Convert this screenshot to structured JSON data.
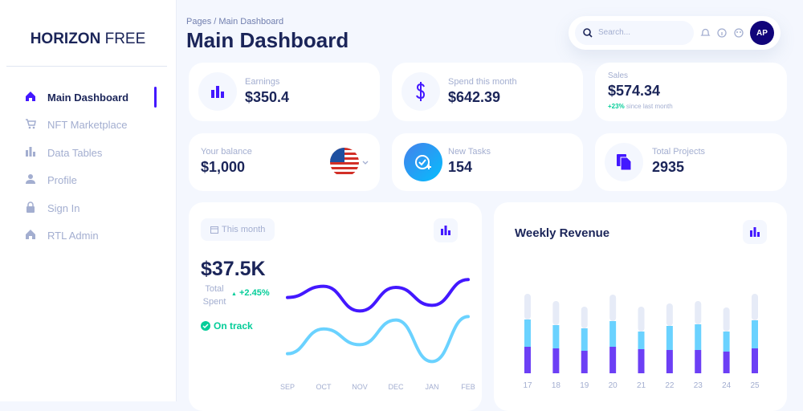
{
  "sidebar": {
    "brand_bold": "HORIZON",
    "brand_light": "FREE",
    "nav": [
      {
        "label": "Main Dashboard",
        "active": true
      },
      {
        "label": "NFT Marketplace"
      },
      {
        "label": "Data Tables"
      },
      {
        "label": "Profile"
      },
      {
        "label": "Sign In"
      },
      {
        "label": "RTL Admin"
      }
    ]
  },
  "header": {
    "breadcrumb_root": "Pages",
    "breadcrumb_sep": "/",
    "breadcrumb_current": "Main Dashboard",
    "title": "Main Dashboard",
    "search_placeholder": "Search...",
    "avatar": "AP"
  },
  "stats": [
    {
      "label": "Earnings",
      "value": "$350.4"
    },
    {
      "label": "Spend this month",
      "value": "$642.39"
    },
    {
      "label": "Sales",
      "value": "$574.34",
      "change": "+23%",
      "change_note": "since last month"
    },
    {
      "label": "Your balance",
      "value": "$1,000"
    },
    {
      "label": "New Tasks",
      "value": "154"
    },
    {
      "label": "Total Projects",
      "value": "2935"
    }
  ],
  "spending_card": {
    "period": "This month",
    "total": "$37.5K",
    "total_label": "Total Spent",
    "change": "+2.45%",
    "status": "On track",
    "chart": {
      "type": "line",
      "categories": [
        "SEP",
        "OCT",
        "NOV",
        "DEC",
        "JAN",
        "FEB"
      ],
      "series": [
        {
          "color": "#4318ff",
          "values": [
            71,
            81,
            59,
            80,
            64,
            87
          ]
        },
        {
          "color": "#6ad2ff",
          "values": [
            21,
            43,
            29,
            51,
            14,
            54
          ]
        }
      ],
      "ylim": [
        0,
        100
      ]
    }
  },
  "revenue_card": {
    "chart": {
      "type": "bar",
      "title": "Weekly Revenue",
      "stacked": true,
      "categories": [
        "17",
        "18",
        "19",
        "20",
        "21",
        "22",
        "23",
        "24",
        "25"
      ],
      "series": [
        {
          "color": "#6c3ff5",
          "values": [
            33,
            31,
            28,
            33,
            30,
            29,
            29,
            27,
            31
          ]
        },
        {
          "color": "#6ad2ff",
          "values": [
            34,
            29,
            28,
            32,
            22,
            30,
            32,
            25,
            35
          ]
        },
        {
          "color": "#e6ebf7",
          "values": [
            32,
            30,
            27,
            33,
            31,
            28,
            29,
            30,
            33
          ]
        }
      ],
      "ylim": [
        0,
        110
      ]
    }
  }
}
